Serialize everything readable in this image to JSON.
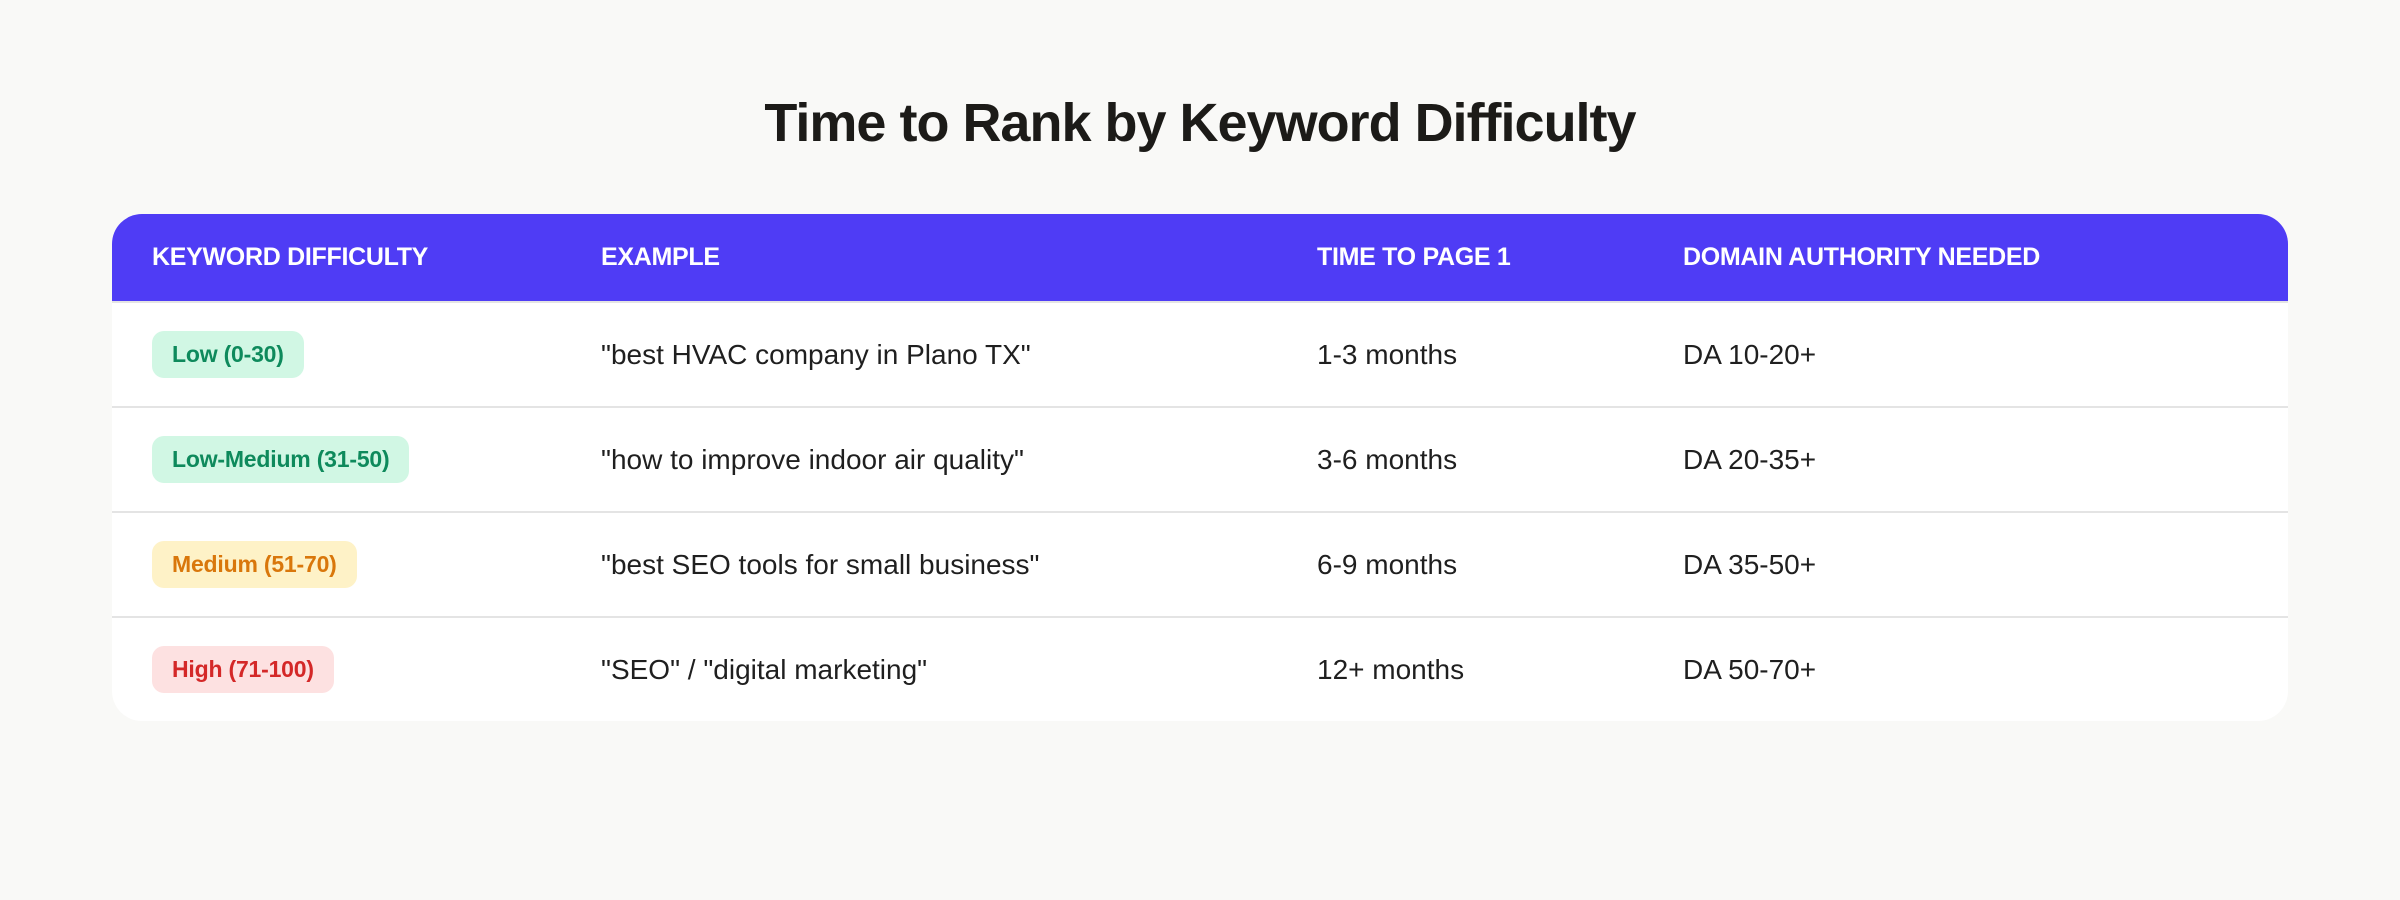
{
  "title": "Time to Rank by Keyword Difficulty",
  "table": {
    "headers": [
      "KEYWORD DIFFICULTY",
      "EXAMPLE",
      "TIME TO PAGE 1",
      "DOMAIN AUTHORITY NEEDED"
    ],
    "header_color": "#4f3cf5",
    "rows": [
      {
        "difficulty": "Low (0-30)",
        "badge_bg": "#d1f7e4",
        "badge_fg": "#0e8a5c",
        "example": "\"best HVAC company in Plano TX\"",
        "time": "1-3 months",
        "da": "DA 10-20+"
      },
      {
        "difficulty": "Low-Medium (31-50)",
        "badge_bg": "#d1f7e4",
        "badge_fg": "#0e8a5c",
        "example": "\"how to improve indoor air quality\"",
        "time": "3-6 months",
        "da": "DA 20-35+"
      },
      {
        "difficulty": "Medium (51-70)",
        "badge_bg": "#fef2c7",
        "badge_fg": "#d9770b",
        "example": "\"best SEO tools for small business\"",
        "time": "6-9 months",
        "da": "DA 35-50+"
      },
      {
        "difficulty": "High (71-100)",
        "badge_bg": "#fde1e1",
        "badge_fg": "#d42828",
        "example": "\"SEO\" / \"digital marketing\"",
        "time": "12+ months",
        "da": "DA 50-70+"
      }
    ]
  }
}
